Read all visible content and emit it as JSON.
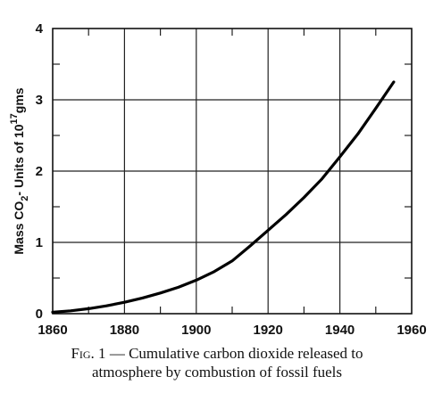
{
  "chart_data": {
    "type": "line",
    "title": "",
    "xlabel": "",
    "ylabel_parts": {
      "pre": "Mass CO",
      "sub": "2",
      "mid": "- Units of 10",
      "sup": "17",
      "post": "gms"
    },
    "xlim": [
      1860,
      1960
    ],
    "ylim": [
      0,
      4
    ],
    "x_ticks": [
      1860,
      1880,
      1900,
      1920,
      1940,
      1960
    ],
    "y_ticks": [
      0,
      1,
      2,
      3,
      4
    ],
    "grid": true,
    "series": [
      {
        "x": [
          1860,
          1865,
          1870,
          1875,
          1880,
          1885,
          1890,
          1895,
          1900,
          1905,
          1910,
          1915,
          1920,
          1925,
          1930,
          1935,
          1940,
          1945,
          1950,
          1955
        ],
        "y": [
          0.02,
          0.04,
          0.07,
          0.11,
          0.16,
          0.22,
          0.29,
          0.37,
          0.47,
          0.59,
          0.74,
          0.95,
          1.17,
          1.39,
          1.63,
          1.89,
          2.2,
          2.52,
          2.88,
          3.25
        ]
      }
    ]
  },
  "caption": {
    "fig_label": "Fig. 1",
    "line1": "— Cumulative carbon dioxide released to",
    "line2": "atmosphere by combustion of fossil fuels"
  }
}
